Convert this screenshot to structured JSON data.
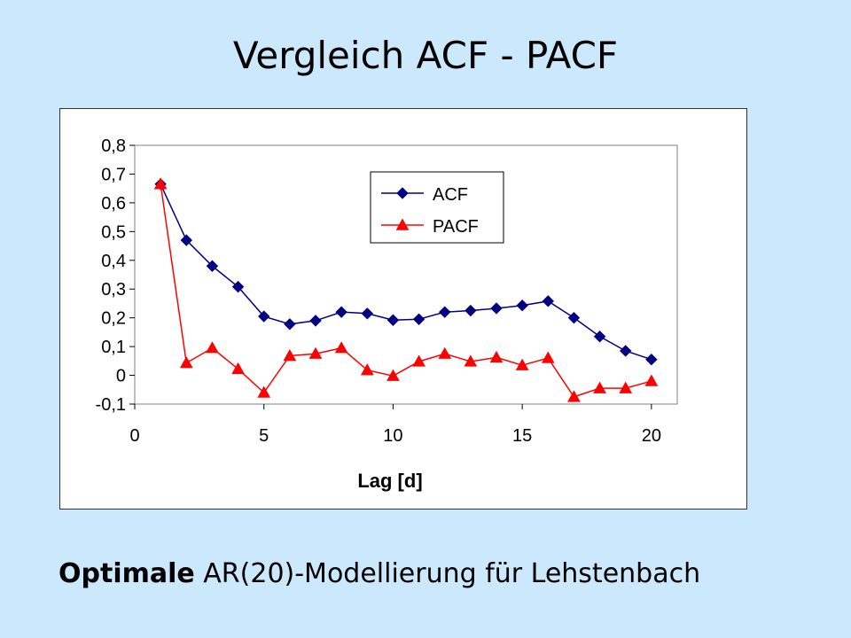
{
  "slide": {
    "title": "Vergleich ACF - PACF",
    "caption_bold": "Optimale",
    "caption_rest": " AR(20)-Modellierung für Lehstenbach"
  },
  "colors": {
    "background": "#cce8fc",
    "acf": "#000080",
    "pacf": "#ff0000"
  },
  "chart_data": {
    "type": "line",
    "xlabel": "Lag [d]",
    "ylabel": "",
    "xlim": [
      0,
      21
    ],
    "ylim": [
      -0.1,
      0.8
    ],
    "x_ticks": [
      0,
      5,
      10,
      15,
      20
    ],
    "x_tick_labels": [
      "0",
      "5",
      "10",
      "15",
      "20"
    ],
    "y_ticks": [
      -0.1,
      0,
      0.1,
      0.2,
      0.3,
      0.4,
      0.5,
      0.6,
      0.7,
      0.8
    ],
    "y_tick_labels": [
      "-0,1",
      "0",
      "0,1",
      "0,2",
      "0,3",
      "0,4",
      "0,5",
      "0,6",
      "0,7",
      "0,8"
    ],
    "grid": false,
    "legend_position": "top-right",
    "x": [
      1,
      2,
      3,
      4,
      5,
      6,
      7,
      8,
      9,
      10,
      11,
      12,
      13,
      14,
      15,
      16,
      17,
      18,
      19,
      20
    ],
    "series": [
      {
        "name": "ACF",
        "marker": "diamond",
        "color": "#000080",
        "values": [
          0.665,
          0.47,
          0.38,
          0.308,
          0.205,
          0.178,
          0.19,
          0.22,
          0.215,
          0.192,
          0.195,
          0.22,
          0.225,
          0.233,
          0.243,
          0.258,
          0.2,
          0.135,
          0.085,
          0.055
        ]
      },
      {
        "name": "PACF",
        "marker": "triangle",
        "color": "#ff0000",
        "values": [
          0.665,
          0.043,
          0.095,
          0.022,
          -0.06,
          0.068,
          0.075,
          0.095,
          0.018,
          -0.002,
          0.048,
          0.075,
          0.048,
          0.062,
          0.035,
          0.06,
          -0.075,
          -0.045,
          -0.045,
          -0.02
        ]
      }
    ]
  }
}
